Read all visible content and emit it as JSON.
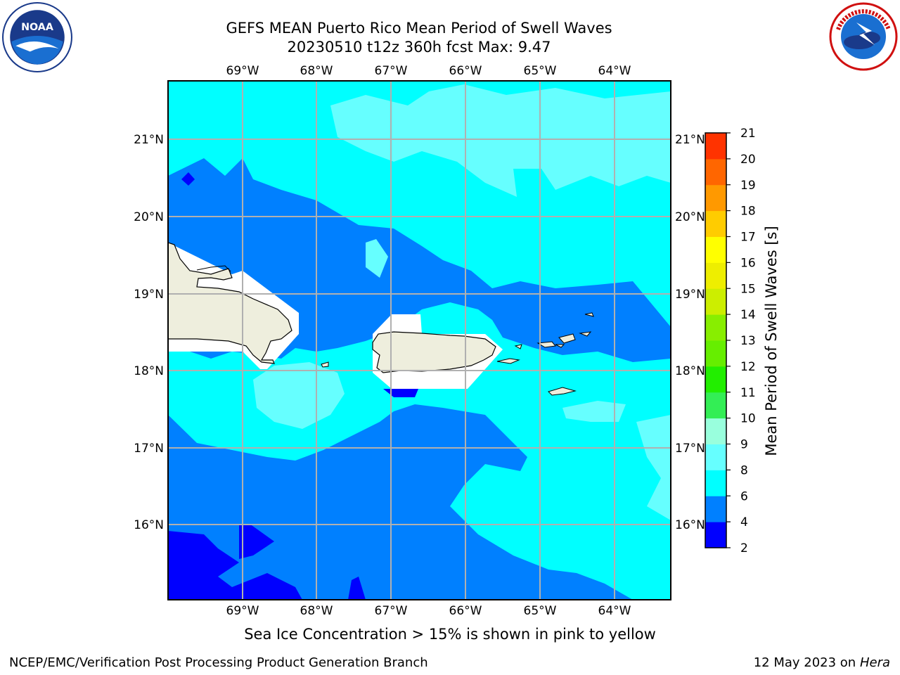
{
  "title": {
    "line1": "GEFS MEAN Puerto Rico Mean Period of Swell Waves",
    "line2": "20230510 t12z 360h fcst   Max: 9.47"
  },
  "axes": {
    "longitudes": [
      "69°W",
      "68°W",
      "67°W",
      "66°W",
      "65°W",
      "64°W"
    ],
    "latitudes": [
      "21°N",
      "20°N",
      "19°N",
      "18°N",
      "17°N",
      "16°N"
    ]
  },
  "colorbar": {
    "label": "Mean Period of Swell Waves [s]",
    "ticks": [
      "2",
      "4",
      "6",
      "8",
      "9",
      "10",
      "11",
      "12",
      "13",
      "14",
      "15",
      "16",
      "17",
      "18",
      "19",
      "20",
      "21"
    ],
    "colors": [
      "#0000ff",
      "#0080ff",
      "#00ffff",
      "#66ffff",
      "#99ffdd",
      "#33ee55",
      "#22ee00",
      "#66ee00",
      "#88ee00",
      "#ccee00",
      "#eeee00",
      "#ffff00",
      "#ffcc00",
      "#ff9900",
      "#ff6600",
      "#ff3300",
      "#ff0000"
    ]
  },
  "legend_note": "Sea Ice Concentration > 15% is shown in pink to yellow",
  "footer": {
    "credit": "NCEP/EMC/Verification Post Processing Product Generation Branch",
    "date": "12 May 2023 on",
    "machine": "Hera"
  },
  "colors": {
    "deep": "#0000ff",
    "mid": "#0080ff",
    "light": "#00ffff",
    "pale": "#66ffff",
    "land": "#eeeedd",
    "grid": "#b0b0b0"
  }
}
